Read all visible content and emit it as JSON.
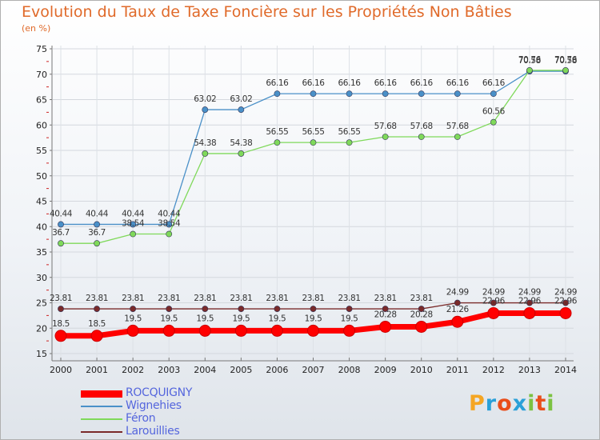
{
  "chart_data": {
    "type": "line",
    "title": "Evolution du Taux de Taxe Foncière sur les Propriétés Non Bâties",
    "unit_label": "(en %)",
    "xlabel": "",
    "ylabel": "",
    "ylim": [
      15,
      75
    ],
    "yticks": [
      15,
      20,
      25,
      30,
      35,
      40,
      45,
      50,
      55,
      60,
      65,
      70,
      75
    ],
    "grid": true,
    "x": [
      "2000",
      "2001",
      "2002",
      "2003",
      "2004",
      "2005",
      "2006",
      "2007",
      "2008",
      "2009",
      "2010",
      "2011",
      "2012",
      "2013",
      "2014"
    ],
    "series": [
      {
        "name": "ROCQUIGNY",
        "color": "#ff0000",
        "values": [
          18.5,
          18.5,
          19.5,
          19.5,
          19.5,
          19.5,
          19.5,
          19.5,
          19.5,
          20.28,
          20.28,
          21.26,
          22.96,
          22.96,
          22.96
        ],
        "labels": [
          "18.5",
          "18.5",
          "19.5",
          "19.5",
          "19.5",
          "19.5",
          "19.5",
          "19.5",
          "19.5",
          "20.28",
          "20.28",
          "21.26",
          "22.96",
          "22.96",
          "22.96"
        ]
      },
      {
        "name": "Wignehies",
        "color": "#4a90c8",
        "values": [
          40.44,
          40.44,
          40.44,
          40.44,
          63.02,
          63.02,
          66.16,
          66.16,
          66.16,
          66.16,
          66.16,
          66.16,
          66.16,
          70.58,
          70.58
        ],
        "labels": [
          "40.44",
          "40.44",
          "40.44",
          "40.44",
          "63.02",
          "63.02",
          "66.16",
          "66.16",
          "66.16",
          "66.16",
          "66.16",
          "66.16",
          "66.16",
          "70.58",
          "70.58"
        ]
      },
      {
        "name": "Féron",
        "color": "#7fd95a",
        "values": [
          36.7,
          36.7,
          38.54,
          38.54,
          54.38,
          54.38,
          56.55,
          56.55,
          56.55,
          57.68,
          57.68,
          57.68,
          60.56,
          70.76,
          70.76
        ],
        "labels": [
          "36.7",
          "36.7",
          "38.54",
          "38.54",
          "54.38",
          "54.38",
          "56.55",
          "56.55",
          "56.55",
          "57.68",
          "57.68",
          "57.68",
          "60.56",
          "70.76",
          "70.76"
        ]
      },
      {
        "name": "Larouillies",
        "color": "#7a2a2a",
        "values": [
          23.81,
          23.81,
          23.81,
          23.81,
          23.81,
          23.81,
          23.81,
          23.81,
          23.81,
          23.81,
          23.81,
          24.99,
          24.99,
          24.99,
          24.99
        ],
        "labels": [
          "23.81",
          "23.81",
          "23.81",
          "23.81",
          "23.81",
          "23.81",
          "23.81",
          "23.81",
          "23.81",
          "23.81",
          "23.81",
          "24.99",
          "24.99",
          "24.99",
          "24.99"
        ]
      }
    ]
  },
  "brand": {
    "letters": [
      "P",
      "r",
      "o",
      "x",
      "i",
      "t",
      "i"
    ],
    "colors": [
      "#f5a623",
      "#2aa0d8",
      "#e94e1b",
      "#2aa0d8",
      "#7cc242",
      "#e94e1b",
      "#7cc242"
    ]
  }
}
